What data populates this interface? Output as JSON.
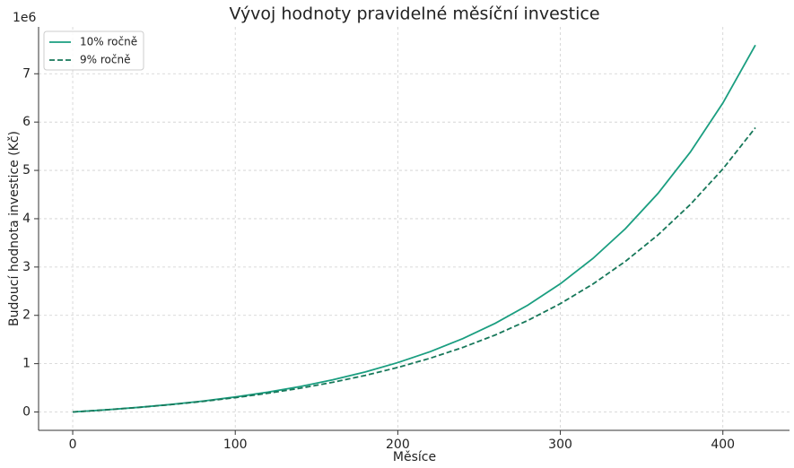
{
  "chart_data": {
    "type": "line",
    "title": "Vývoj hodnoty pravidelné měsíční investice",
    "x_label": "Měsíce",
    "y_label": "Budoucí hodnota investice (Kč)",
    "y_offset_label": "1e6",
    "x": [
      0,
      20,
      40,
      60,
      80,
      100,
      120,
      140,
      160,
      180,
      200,
      220,
      240,
      260,
      280,
      300,
      320,
      340,
      360,
      380,
      400,
      420
    ],
    "series": [
      {
        "name": "10% ročně",
        "color": "#1a9e80",
        "dash": "solid",
        "values": [
          0,
          43334,
          94493,
          154874,
          226162,
          310315,
          409690,
          526975,
          665438,
          828900,
          1021872,
          1249680,
          1518662,
          1836161,
          2210952,
          2653385,
          3175778,
          3792420,
          4520431,
          5379830,
          6394370,
          7592093
        ]
      },
      {
        "name": "9% ročně",
        "color": "#17785a",
        "dash": "dashed",
        "values": [
          0,
          42981,
          92891,
          150848,
          218144,
          296288,
          387029,
          492395,
          614745,
          756819,
          921790,
          1113360,
          1335800,
          1594097,
          1894032,
          2242309,
          2646728,
          3116324,
          3661624,
          4294816,
          5030100,
          5883877
        ]
      }
    ],
    "xlim": [
      -21,
      441
    ],
    "xticks": [
      0,
      100,
      200,
      300,
      400
    ],
    "ylim": [
      -380000,
      7970000
    ],
    "yticks": [
      0,
      {
        "value": 1000000,
        "label": "1"
      },
      {
        "value": 2000000,
        "label": "2"
      },
      {
        "value": 3000000,
        "label": "3"
      },
      {
        "value": 4000000,
        "label": "4"
      },
      {
        "value": 5000000,
        "label": "5"
      },
      {
        "value": 6000000,
        "label": "6"
      },
      {
        "value": 7000000,
        "label": "7"
      }
    ],
    "grid": true,
    "legend": "upper-left"
  }
}
